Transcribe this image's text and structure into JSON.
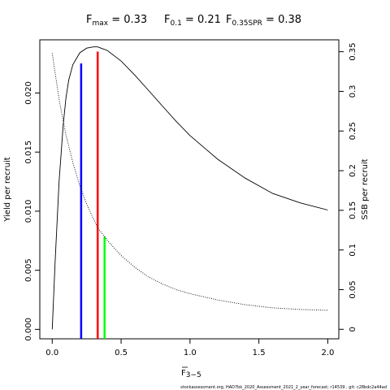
{
  "chart_data": {
    "type": "line",
    "title": {
      "fmax": {
        "main": "F",
        "sub": "max",
        "rest": " = 0.33"
      },
      "f01": {
        "main": "F",
        "sub": "0.1",
        "rest": " = 0.21"
      },
      "fspr": {
        "main": "F",
        "sub": "0.35SPR",
        "rest": " = 0.38"
      }
    },
    "xlabel": {
      "main": "F",
      "sub": "3−5",
      "overline": true
    },
    "ylabel_left": "Yield per recruit",
    "ylabel_right": "SSB per recruit",
    "xlim": [
      -0.09,
      2.08
    ],
    "ylim_left": [
      -0.0008,
      0.0245
    ],
    "ylim_right": [
      -0.012,
      0.365
    ],
    "x_ticks": [
      {
        "value": 0,
        "label": "0.0"
      },
      {
        "value": 0.5,
        "label": "0.5"
      },
      {
        "value": 1,
        "label": "1.0"
      },
      {
        "value": 1.5,
        "label": "1.5"
      },
      {
        "value": 2,
        "label": "2.0"
      }
    ],
    "y_left_ticks": [
      {
        "value": 0,
        "label": "0.000"
      },
      {
        "value": 0.005,
        "label": "0.005"
      },
      {
        "value": 0.01,
        "label": "0.010"
      },
      {
        "value": 0.015,
        "label": "0.015"
      },
      {
        "value": 0.02,
        "label": "0.020"
      }
    ],
    "y_right_ticks": [
      {
        "value": 0,
        "label": "0"
      },
      {
        "value": 0.05,
        "label": "0.05"
      },
      {
        "value": 0.1,
        "label": "0.1"
      },
      {
        "value": 0.15,
        "label": "0.15"
      },
      {
        "value": 0.2,
        "label": "0.2"
      },
      {
        "value": 0.25,
        "label": "0.25"
      },
      {
        "value": 0.3,
        "label": "0.3"
      },
      {
        "value": 0.35,
        "label": "0.35"
      }
    ],
    "series": [
      {
        "style": "solid",
        "axis": "left",
        "color": "#000000",
        "x": [
          0,
          0.02,
          0.05,
          0.08,
          0.1,
          0.12,
          0.15,
          0.2,
          0.25,
          0.3,
          0.33,
          0.4,
          0.5,
          0.6,
          0.7,
          0.8,
          0.9,
          1.0,
          1.2,
          1.4,
          1.6,
          1.8,
          2.0
        ],
        "y": [
          0.0,
          0.0055,
          0.0125,
          0.0173,
          0.0196,
          0.0211,
          0.0224,
          0.0234,
          0.0238,
          0.0239,
          0.0239,
          0.0236,
          0.0227,
          0.0215,
          0.0202,
          0.0189,
          0.0176,
          0.0164,
          0.0144,
          0.0128,
          0.0115,
          0.0107,
          0.0101
        ]
      },
      {
        "style": "dotted",
        "axis": "right",
        "color": "#000000",
        "x": [
          0,
          0.05,
          0.1,
          0.15,
          0.2,
          0.25,
          0.3,
          0.33,
          0.38,
          0.4,
          0.5,
          0.6,
          0.7,
          0.8,
          0.9,
          1.0,
          1.2,
          1.4,
          1.6,
          1.8,
          2.0
        ],
        "y": [
          0.348,
          0.29,
          0.245,
          0.21,
          0.181,
          0.158,
          0.139,
          0.128,
          0.117,
          0.112,
          0.093,
          0.078,
          0.066,
          0.057,
          0.05,
          0.045,
          0.037,
          0.031,
          0.027,
          0.025,
          0.024
        ]
      }
    ],
    "reference_lines": [
      {
        "x": 0.21,
        "axis": "left",
        "y": 0.0225,
        "color": "#0000ff"
      },
      {
        "x": 0.33,
        "axis": "left",
        "y": 0.0235,
        "color": "#ff0000"
      },
      {
        "x": 0.38,
        "axis": "right",
        "y": 0.117,
        "color": "#00ff00"
      }
    ]
  },
  "footer": "stockassessment.org, HAD7bk_2020_Assessment_2021_2_year_forecast, r14539 , git: c28bdc2a44ad"
}
